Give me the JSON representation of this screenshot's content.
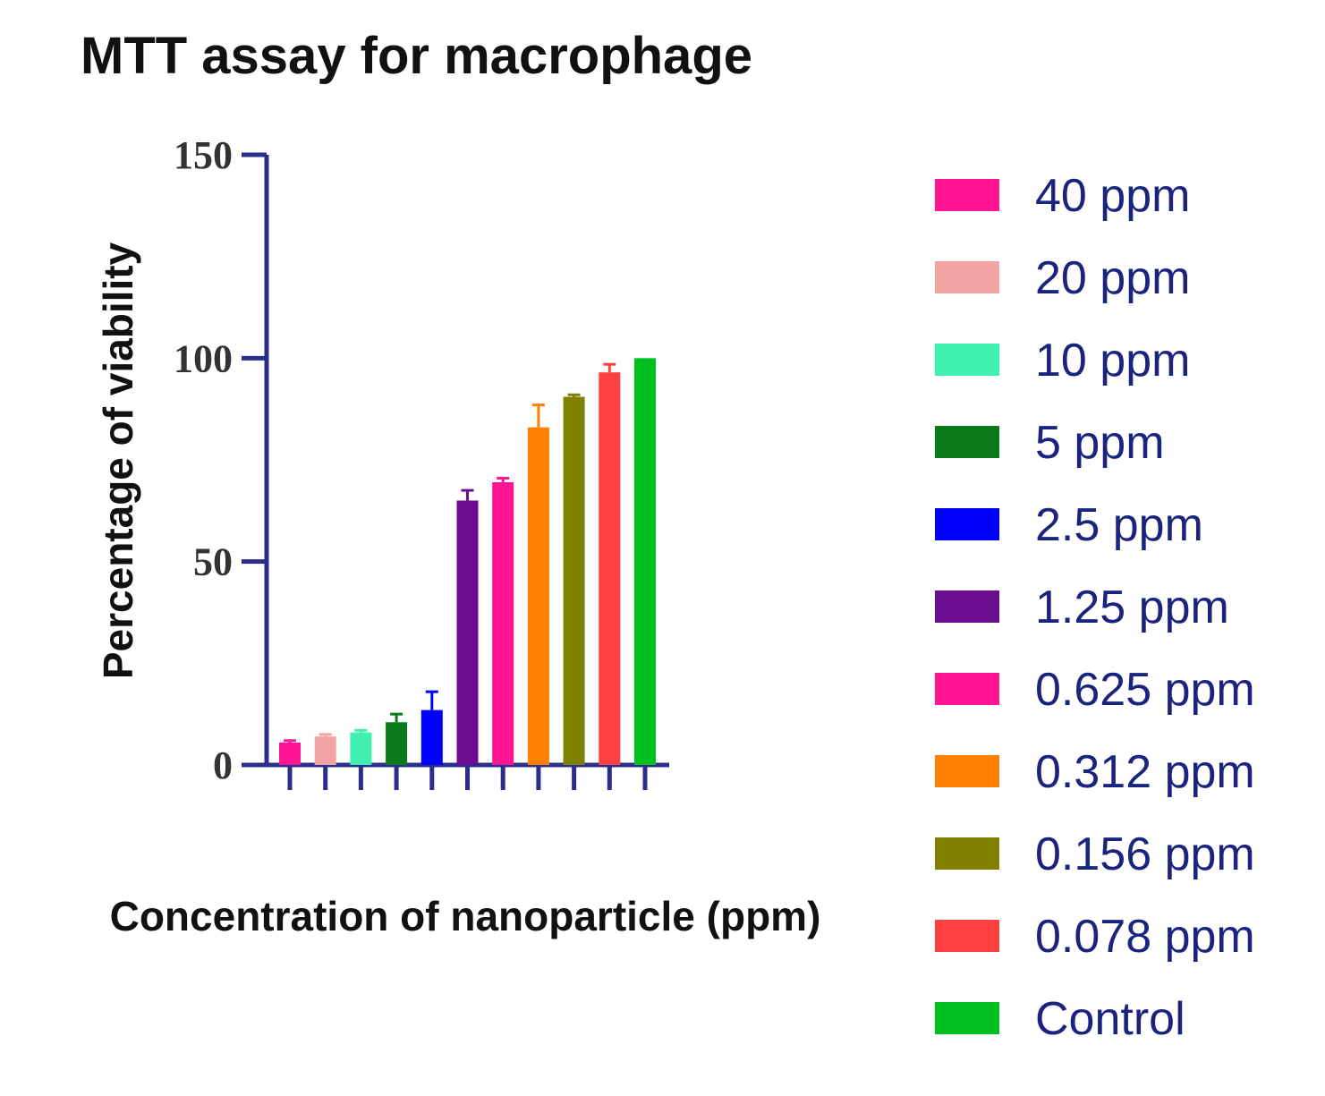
{
  "chart_data": {
    "type": "bar",
    "title": "MTT assay for macrophage",
    "xlabel": "Concentration of nanoparticle (ppm)",
    "ylabel": "Percentage of viability",
    "ylim": [
      0,
      150
    ],
    "yticks": [
      "0",
      "50",
      "100",
      "150"
    ],
    "legend_position": "right",
    "axis_color": "#2a2e8a",
    "categories": [
      "40 ppm",
      "20 ppm",
      "10 ppm",
      "5 ppm",
      "2.5 ppm",
      "1.25 ppm",
      "0.625 ppm",
      "0.312 ppm",
      "0.156 ppm",
      "0.078 ppm",
      "Control"
    ],
    "values": [
      5.5,
      7.0,
      8.0,
      10.5,
      13.5,
      65.0,
      69.5,
      83.0,
      90.5,
      96.5,
      100.0
    ],
    "errors": [
      0.5,
      0.5,
      0.5,
      2.0,
      4.5,
      2.5,
      1.0,
      5.5,
      0.5,
      2.0,
      0.0
    ],
    "colors": [
      "#ff1493",
      "#f4a3a3",
      "#40f0b0",
      "#0b7a1c",
      "#0000ff",
      "#6a0d91",
      "#ff1493",
      "#ff8000",
      "#7f7f00",
      "#ff4040",
      "#00c020"
    ]
  }
}
